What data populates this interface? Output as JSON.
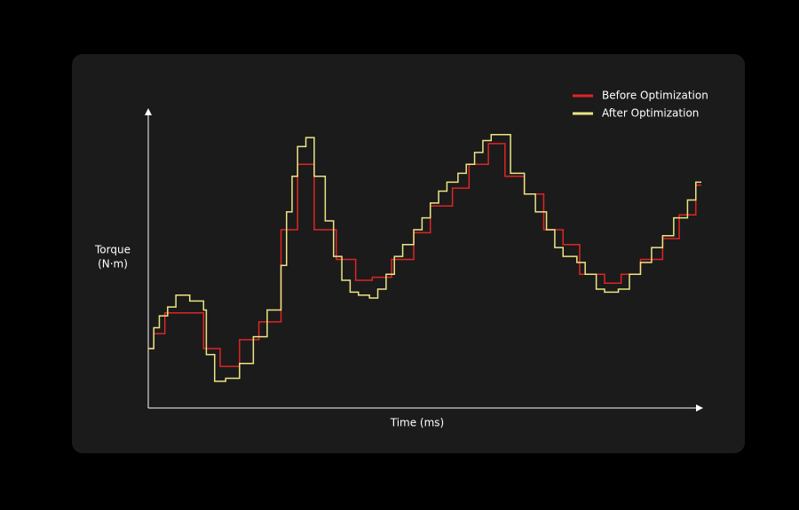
{
  "chart_data": {
    "type": "step",
    "xlabel": "Time (ms)",
    "ylabel": [
      "Torque",
      "(N·m)"
    ],
    "xlim": [
      0,
      100
    ],
    "ylim": [
      0,
      100
    ],
    "legend": "upper right",
    "series": [
      {
        "name": "Before Optimization",
        "color": "#e02424",
        "x": [
          0,
          1,
          3,
          10,
          13,
          16.5,
          20,
          24,
          27,
          30,
          34,
          37.5,
          40.5,
          44,
          48,
          51,
          55,
          58,
          61.5,
          64.5,
          68,
          71.5,
          75,
          78,
          82.5,
          85.5,
          89,
          93,
          96,
          99
        ],
        "values": [
          20,
          25,
          32,
          20,
          14,
          23,
          29,
          60,
          82,
          60,
          50,
          43,
          44,
          50,
          59,
          68,
          74,
          82,
          89,
          78,
          72,
          60,
          55,
          45,
          42,
          45,
          50,
          57,
          65,
          75
        ]
      },
      {
        "name": "After Optimization",
        "color": "#ece584",
        "x": [
          0,
          1,
          2,
          3.5,
          5,
          7.5,
          10,
          10.5,
          12,
          14,
          16.5,
          19,
          21.5,
          24,
          25,
          26,
          27,
          28.5,
          30,
          32,
          33.5,
          35,
          36.5,
          38,
          40,
          41.5,
          43,
          44.5,
          46,
          48,
          49.5,
          51,
          52.5,
          54,
          56,
          57.5,
          59,
          60.5,
          62,
          64.5,
          65.5,
          68,
          70,
          72,
          73.5,
          75,
          77.5,
          79,
          81,
          82.5,
          85,
          87,
          89,
          91,
          93,
          95,
          97.5,
          99
        ],
        "values": [
          20,
          27,
          31,
          34,
          38,
          36,
          33,
          18,
          9,
          10,
          15,
          24,
          33,
          48,
          66,
          78,
          88,
          91,
          78,
          63,
          51,
          43,
          39,
          38,
          37,
          40,
          45,
          51,
          55,
          60,
          64,
          69,
          73,
          76,
          79,
          82,
          86,
          90,
          92,
          92,
          79,
          72,
          66,
          60,
          54,
          51,
          49,
          45,
          40,
          39,
          40,
          45,
          49,
          54,
          58,
          64,
          70,
          76
        ]
      }
    ]
  }
}
